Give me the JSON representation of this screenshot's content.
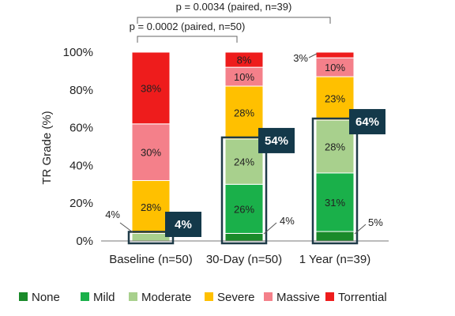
{
  "chart_data": {
    "type": "bar",
    "stacked": true,
    "ylabel": "TR Grade (%)",
    "ylim": [
      0,
      100
    ],
    "yticks": [
      "0%",
      "20%",
      "40%",
      "60%",
      "80%",
      "100%"
    ],
    "categories": [
      "Baseline (n=50)",
      "30-Day (n=50)",
      "1 Year (n=39)"
    ],
    "series": [
      {
        "name": "None",
        "color": "#1a8a2a",
        "values": [
          0,
          4,
          5
        ]
      },
      {
        "name": "Mild",
        "color": "#1ab04a",
        "values": [
          0,
          26,
          31
        ]
      },
      {
        "name": "Moderate",
        "color": "#a8d08d",
        "values": [
          4,
          24,
          28
        ]
      },
      {
        "name": "Severe",
        "color": "#ffc000",
        "values": [
          28,
          28,
          23
        ]
      },
      {
        "name": "Massive",
        "color": "#f4808a",
        "values": [
          30,
          10,
          10
        ]
      },
      {
        "name": "Torrential",
        "color": "#ee1c1c",
        "values": [
          38,
          8,
          3
        ]
      }
    ],
    "segment_labels": [
      [
        "",
        "",
        "",
        "28%",
        "30%",
        "38%"
      ],
      [
        "",
        "26%",
        "24%",
        "28%",
        "10%",
        "8%"
      ],
      [
        "",
        "31%",
        "28%",
        "23%",
        "10%",
        ""
      ]
    ],
    "side_labels": [
      "4%",
      "4%",
      "5%",
      "3%"
    ],
    "highlight_boxes": [
      "4%",
      "54%",
      "64%"
    ],
    "comparisons": [
      "p = 0.0034 (paired, n=39)",
      "p = 0.0002 (paired, n=50)"
    ],
    "legend_position": "bottom",
    "grid": false
  }
}
